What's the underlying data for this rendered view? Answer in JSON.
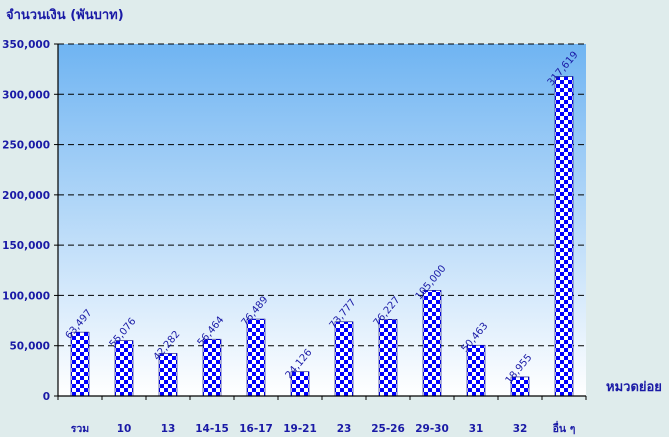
{
  "chart_data": {
    "type": "bar",
    "title": "",
    "ylabel": "จำนวนเงิน (พันบาท)",
    "xlabel": "หมวดย่อย",
    "categories": [
      "รวม",
      "10",
      "13",
      "14-15",
      "16-17",
      "19-21",
      "23",
      "25-26",
      "29-30",
      "31",
      "32",
      "อื่น ๆ"
    ],
    "values": [
      63497,
      55076,
      42282,
      56464,
      76489,
      24126,
      73777,
      76227,
      105000,
      50463,
      18955,
      317619
    ],
    "data_labels": [
      "63,497",
      "55,076",
      "42,282",
      "56,464",
      "76,489",
      "24,126",
      "73,777",
      "76,227",
      "105,000",
      "50,463",
      "18,955",
      "317,619"
    ],
    "ylim": [
      0,
      350000
    ],
    "yticks": [
      "0",
      "50,000",
      "100,000",
      "150,000",
      "200,000",
      "250,000",
      "300,000",
      "350,000"
    ],
    "grid": true,
    "colors": {
      "background": "#dfecec",
      "plot_top": "#6fb4f2",
      "plot_bottom": "#ffffff",
      "bar_fill": "#0000ff",
      "bar_alt": "#ffffff",
      "text": "#1a1aa6",
      "axis": "#000000"
    }
  }
}
